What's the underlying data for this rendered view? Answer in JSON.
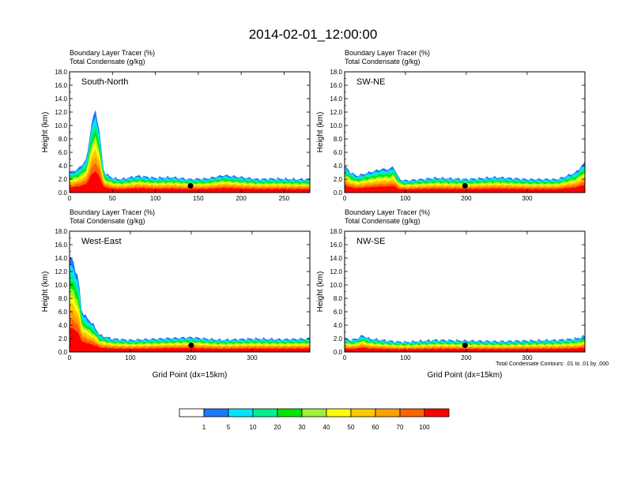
{
  "figure": {
    "title": "2014-02-01_12:00:00",
    "subtitle_line1": "Boundary Layer Tracer    (%)",
    "subtitle_line2": "Total Condensate    (g/kg)",
    "contour_note": "Total Condensate Contours: .01 to .01 by .000"
  },
  "colorbar": {
    "levels": [
      "1",
      "5",
      "10",
      "20",
      "30",
      "40",
      "50",
      "60",
      "70",
      "100"
    ],
    "colors": [
      "#ffffff",
      "#1e78ff",
      "#00e6ff",
      "#00f08c",
      "#00e600",
      "#a0f03c",
      "#ffff00",
      "#ffc800",
      "#ffa000",
      "#ff6400",
      "#ff0000"
    ]
  },
  "chart_data": [
    {
      "type": "heatmap",
      "panel": "South-North",
      "title": "South-North",
      "ylabel": "Height (km)",
      "xlabel": "",
      "xlim": [
        0,
        280
      ],
      "ylim": [
        0,
        18
      ],
      "xticks": [
        "0",
        "50",
        "100",
        "150",
        "200",
        "250"
      ],
      "yticks": [
        "0.0",
        "2.0",
        "4.0",
        "6.0",
        "8.0",
        "10.0",
        "12.0",
        "14.0",
        "16.0",
        "18.0"
      ],
      "profile_x": [
        0,
        10,
        20,
        25,
        30,
        35,
        40,
        50,
        60,
        80,
        100,
        120,
        140,
        160,
        180,
        200,
        220,
        240,
        260,
        280
      ],
      "tracer_top_km": [
        3.0,
        3.5,
        5.0,
        10.0,
        12.5,
        9.0,
        3.0,
        2.2,
        2.0,
        2.5,
        2.2,
        2.3,
        2.0,
        2.1,
        2.6,
        2.3,
        2.0,
        2.1,
        2.0,
        2.0
      ],
      "marker_x": 141
    },
    {
      "type": "heatmap",
      "panel": "SW-NE",
      "title": "SW-NE",
      "ylabel": "Height (km)",
      "xlabel": "",
      "xlim": [
        0,
        395
      ],
      "ylim": [
        0,
        18
      ],
      "xticks": [
        "0",
        "100",
        "200",
        "300"
      ],
      "yticks": [
        "0.0",
        "2.0",
        "4.0",
        "6.0",
        "8.0",
        "10.0",
        "12.0",
        "14.0",
        "16.0",
        "18.0"
      ],
      "profile_x": [
        0,
        10,
        20,
        40,
        60,
        75,
        80,
        90,
        100,
        150,
        200,
        250,
        300,
        350,
        380,
        395
      ],
      "tracer_top_km": [
        4.0,
        3.0,
        2.5,
        3.0,
        3.5,
        3.5,
        4.0,
        2.0,
        1.8,
        2.2,
        2.0,
        2.3,
        2.0,
        2.0,
        3.0,
        4.5
      ],
      "marker_x": 198
    },
    {
      "type": "heatmap",
      "panel": "West-East",
      "title": "West-East",
      "ylabel": "Height (km)",
      "xlabel": "Grid Point (dx=15km)",
      "xlim": [
        0,
        395
      ],
      "ylim": [
        0,
        18
      ],
      "xticks": [
        "0",
        "100",
        "200",
        "300"
      ],
      "yticks": [
        "0.0",
        "2.0",
        "4.0",
        "6.0",
        "8.0",
        "10.0",
        "12.0",
        "14.0",
        "16.0",
        "18.0"
      ],
      "profile_x": [
        0,
        5,
        10,
        15,
        20,
        30,
        40,
        50,
        70,
        100,
        150,
        200,
        250,
        300,
        350,
        395
      ],
      "tracer_top_km": [
        14.0,
        14.0,
        12.0,
        11.0,
        6.0,
        5.0,
        4.0,
        2.5,
        2.0,
        1.8,
        2.0,
        2.2,
        1.8,
        2.0,
        1.9,
        2.0
      ],
      "marker_x": 200
    },
    {
      "type": "heatmap",
      "panel": "NW-SE",
      "title": "NW-SE",
      "ylabel": "Height (km)",
      "xlabel": "Grid Point (dx=15km)",
      "xlim": [
        0,
        395
      ],
      "ylim": [
        0,
        18
      ],
      "xticks": [
        "0",
        "100",
        "200",
        "300"
      ],
      "yticks": [
        "0.0",
        "2.0",
        "4.0",
        "6.0",
        "8.0",
        "10.0",
        "12.0",
        "14.0",
        "16.0",
        "18.0"
      ],
      "profile_x": [
        0,
        10,
        20,
        30,
        40,
        60,
        80,
        100,
        150,
        200,
        250,
        300,
        350,
        380,
        395
      ],
      "tracer_top_km": [
        2.0,
        1.8,
        2.0,
        2.5,
        2.0,
        1.8,
        1.6,
        1.5,
        1.8,
        1.7,
        1.6,
        1.7,
        1.8,
        2.0,
        2.4
      ],
      "marker_x": 198
    }
  ]
}
